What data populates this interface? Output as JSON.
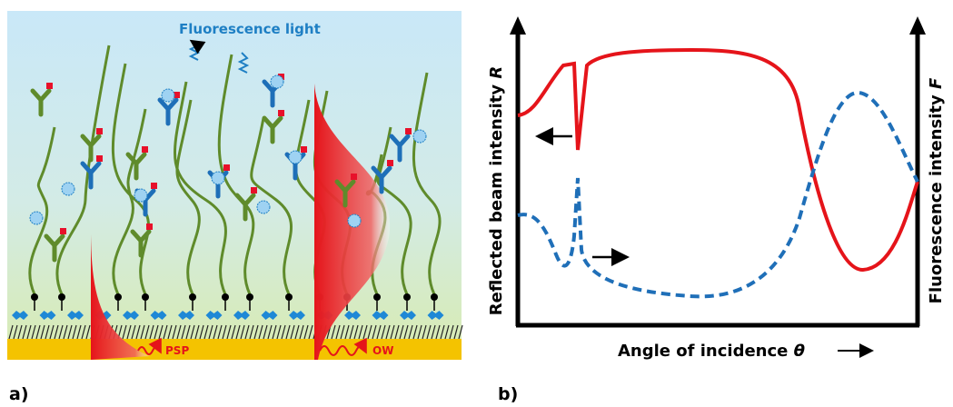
{
  "panel_a": {
    "label": "a)",
    "emission": "Fluorescence light",
    "psp": "PSP",
    "ow": "OW"
  },
  "panel_b": {
    "label": "b)",
    "y_left": {
      "text": "Reflected beam intensity",
      "variable": "R"
    },
    "y_right": {
      "text": "Fluorescence intensity",
      "variable": "F"
    },
    "x_axis": {
      "text": "Angle of incidence",
      "variable": "θ"
    }
  }
}
